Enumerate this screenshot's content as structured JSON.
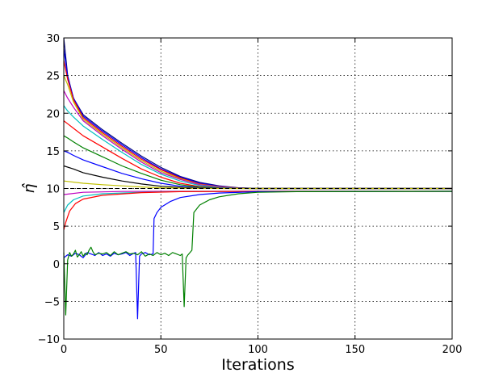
{
  "chart_data": {
    "type": "line",
    "title": "",
    "xlabel": "Iterations",
    "ylabel": "η̂",
    "xlim": [
      0,
      200
    ],
    "ylim": [
      -10,
      30
    ],
    "xticks": [
      0,
      50,
      100,
      150,
      200
    ],
    "yticks": [
      -10,
      -5,
      0,
      5,
      10,
      15,
      20,
      25,
      30
    ],
    "grid": true,
    "reference_line": {
      "y": 10,
      "style": "dashed",
      "color": "#000000"
    },
    "series": [
      {
        "color": "#000080",
        "points": [
          [
            0,
            30
          ],
          [
            2,
            25
          ],
          [
            5,
            22
          ],
          [
            10,
            19.8
          ],
          [
            20,
            17.8
          ],
          [
            30,
            16
          ],
          [
            40,
            14.3
          ],
          [
            50,
            12.8
          ],
          [
            60,
            11.6
          ],
          [
            70,
            10.8
          ],
          [
            80,
            10.35
          ],
          [
            90,
            10.1
          ],
          [
            100,
            10.02
          ],
          [
            200,
            10
          ]
        ]
      },
      {
        "color": "#0000ff",
        "points": [
          [
            0,
            28.5
          ],
          [
            2,
            24.8
          ],
          [
            5,
            22
          ],
          [
            10,
            19.6
          ],
          [
            20,
            17.6
          ],
          [
            30,
            15.8
          ],
          [
            40,
            14.1
          ],
          [
            50,
            12.6
          ],
          [
            60,
            11.5
          ],
          [
            70,
            10.7
          ],
          [
            80,
            10.3
          ],
          [
            90,
            10.08
          ],
          [
            100,
            10.02
          ],
          [
            200,
            10
          ]
        ]
      },
      {
        "color": "#ff0000",
        "points": [
          [
            0,
            27
          ],
          [
            2,
            24.5
          ],
          [
            5,
            21.8
          ],
          [
            10,
            19.4
          ],
          [
            20,
            17.4
          ],
          [
            30,
            15.6
          ],
          [
            40,
            13.9
          ],
          [
            50,
            12.5
          ],
          [
            60,
            11.4
          ],
          [
            70,
            10.6
          ],
          [
            80,
            10.25
          ],
          [
            90,
            10.07
          ],
          [
            100,
            10.01
          ],
          [
            200,
            10
          ]
        ]
      },
      {
        "color": "#bfbf00",
        "points": [
          [
            0,
            25
          ],
          [
            2,
            23.8
          ],
          [
            5,
            21.5
          ],
          [
            10,
            19.2
          ],
          [
            20,
            17.2
          ],
          [
            30,
            15.4
          ],
          [
            40,
            13.7
          ],
          [
            50,
            12.3
          ],
          [
            60,
            11.3
          ],
          [
            70,
            10.55
          ],
          [
            80,
            10.2
          ],
          [
            90,
            10.05
          ],
          [
            100,
            10.01
          ],
          [
            200,
            10
          ]
        ]
      },
      {
        "color": "#bf00bf",
        "points": [
          [
            0,
            23
          ],
          [
            2,
            22
          ],
          [
            5,
            20.8
          ],
          [
            10,
            19
          ],
          [
            20,
            17
          ],
          [
            30,
            15.2
          ],
          [
            40,
            13.5
          ],
          [
            50,
            12.1
          ],
          [
            60,
            11.2
          ],
          [
            70,
            10.5
          ],
          [
            80,
            10.18
          ],
          [
            90,
            10.04
          ],
          [
            100,
            10
          ],
          [
            200,
            10
          ]
        ]
      },
      {
        "color": "#00bfbf",
        "points": [
          [
            0,
            21
          ],
          [
            2,
            20.3
          ],
          [
            5,
            19.5
          ],
          [
            10,
            18.3
          ],
          [
            20,
            16.5
          ],
          [
            30,
            14.8
          ],
          [
            40,
            13.2
          ],
          [
            50,
            11.9
          ],
          [
            60,
            11
          ],
          [
            70,
            10.4
          ],
          [
            80,
            10.13
          ],
          [
            90,
            10.03
          ],
          [
            100,
            10
          ],
          [
            200,
            10
          ]
        ]
      },
      {
        "color": "#ff0000",
        "points": [
          [
            0,
            19
          ],
          [
            2,
            18.6
          ],
          [
            5,
            18
          ],
          [
            10,
            17
          ],
          [
            20,
            15.5
          ],
          [
            30,
            14
          ],
          [
            40,
            12.6
          ],
          [
            50,
            11.5
          ],
          [
            60,
            10.7
          ],
          [
            70,
            10.25
          ],
          [
            80,
            10.08
          ],
          [
            90,
            10.02
          ],
          [
            100,
            10
          ],
          [
            200,
            10
          ]
        ]
      },
      {
        "color": "#008000",
        "points": [
          [
            0,
            17
          ],
          [
            2,
            16.7
          ],
          [
            5,
            16.2
          ],
          [
            10,
            15.4
          ],
          [
            20,
            14.2
          ],
          [
            30,
            13
          ],
          [
            40,
            12
          ],
          [
            50,
            11.1
          ],
          [
            60,
            10.5
          ],
          [
            70,
            10.18
          ],
          [
            80,
            10.05
          ],
          [
            90,
            10.01
          ],
          [
            100,
            10
          ],
          [
            200,
            10
          ]
        ]
      },
      {
        "color": "#0000ff",
        "points": [
          [
            0,
            15
          ],
          [
            2,
            14.8
          ],
          [
            5,
            14.4
          ],
          [
            10,
            13.8
          ],
          [
            20,
            12.9
          ],
          [
            30,
            12
          ],
          [
            40,
            11.3
          ],
          [
            50,
            10.7
          ],
          [
            60,
            10.3
          ],
          [
            70,
            10.1
          ],
          [
            80,
            10.03
          ],
          [
            100,
            10
          ],
          [
            200,
            10
          ]
        ]
      },
      {
        "color": "#000000",
        "points": [
          [
            0,
            13
          ],
          [
            5,
            12.6
          ],
          [
            10,
            12.1
          ],
          [
            20,
            11.5
          ],
          [
            30,
            11
          ],
          [
            40,
            10.6
          ],
          [
            50,
            10.3
          ],
          [
            60,
            10.15
          ],
          [
            70,
            10.05
          ],
          [
            80,
            10.01
          ],
          [
            100,
            10
          ],
          [
            200,
            10
          ]
        ]
      },
      {
        "color": "#bfbf00",
        "points": [
          [
            0,
            11
          ],
          [
            10,
            10.7
          ],
          [
            20,
            10.5
          ],
          [
            30,
            10.35
          ],
          [
            40,
            10.2
          ],
          [
            50,
            10.1
          ],
          [
            60,
            10.05
          ],
          [
            80,
            10
          ],
          [
            200,
            10
          ]
        ]
      },
      {
        "color": "#bf00bf",
        "points": [
          [
            0,
            9.2
          ],
          [
            10,
            9.5
          ],
          [
            30,
            9.6
          ],
          [
            60,
            9.62
          ],
          [
            200,
            9.62
          ]
        ]
      },
      {
        "color": "#00bfbf",
        "points": [
          [
            0,
            6.8
          ],
          [
            2,
            7.8
          ],
          [
            5,
            8.5
          ],
          [
            10,
            9
          ],
          [
            20,
            9.3
          ],
          [
            40,
            9.5
          ],
          [
            60,
            9.6
          ],
          [
            100,
            9.62
          ],
          [
            200,
            9.62
          ]
        ]
      },
      {
        "color": "#ff0000",
        "points": [
          [
            0,
            4.5
          ],
          [
            1,
            5.5
          ],
          [
            3,
            7
          ],
          [
            6,
            8
          ],
          [
            10,
            8.6
          ],
          [
            20,
            9.1
          ],
          [
            40,
            9.45
          ],
          [
            60,
            9.58
          ],
          [
            100,
            9.62
          ],
          [
            200,
            9.62
          ]
        ]
      },
      {
        "color": "#0000ff",
        "points": [
          [
            0,
            0.8
          ],
          [
            2,
            1.2
          ],
          [
            4,
            1
          ],
          [
            6,
            1.4
          ],
          [
            8,
            1.2
          ],
          [
            10,
            0.8
          ],
          [
            12,
            1.5
          ],
          [
            14,
            1.3
          ],
          [
            16,
            1.1
          ],
          [
            18,
            1.5
          ],
          [
            20,
            1.1
          ],
          [
            22,
            1.3
          ],
          [
            24,
            1
          ],
          [
            26,
            1.4
          ],
          [
            28,
            1.2
          ],
          [
            30,
            1.3
          ],
          [
            32,
            1.5
          ],
          [
            34,
            1.1
          ],
          [
            36,
            1.4
          ],
          [
            37,
            1.5
          ],
          [
            38,
            -7.3
          ],
          [
            39,
            1
          ],
          [
            40,
            1.3
          ],
          [
            42,
            1.5
          ],
          [
            44,
            1.2
          ],
          [
            46,
            1.3
          ],
          [
            46.5,
            6
          ],
          [
            48,
            6.8
          ],
          [
            50,
            7.5
          ],
          [
            55,
            8.3
          ],
          [
            60,
            8.8
          ],
          [
            70,
            9.2
          ],
          [
            80,
            9.4
          ],
          [
            100,
            9.58
          ],
          [
            200,
            9.62
          ]
        ]
      },
      {
        "color": "#008000",
        "points": [
          [
            0,
            1.5
          ],
          [
            1,
            -6.8
          ],
          [
            2,
            0.5
          ],
          [
            3,
            1.5
          ],
          [
            4,
            1
          ],
          [
            5,
            1.3
          ],
          [
            6,
            1.8
          ],
          [
            7,
            0.9
          ],
          [
            8,
            1.2
          ],
          [
            9,
            1.6
          ],
          [
            10,
            1
          ],
          [
            11,
            1.4
          ],
          [
            12,
            1.2
          ],
          [
            13,
            1.8
          ],
          [
            14,
            2.2
          ],
          [
            15,
            1.6
          ],
          [
            16,
            1.2
          ],
          [
            18,
            1.4
          ],
          [
            20,
            1.3
          ],
          [
            22,
            1.5
          ],
          [
            24,
            1.1
          ],
          [
            26,
            1.6
          ],
          [
            28,
            1.2
          ],
          [
            30,
            1.4
          ],
          [
            32,
            1.6
          ],
          [
            34,
            1.3
          ],
          [
            36,
            1.4
          ],
          [
            38,
            1.2
          ],
          [
            40,
            1.6
          ],
          [
            42,
            1
          ],
          [
            44,
            1.3
          ],
          [
            46,
            1.1
          ],
          [
            48,
            1.5
          ],
          [
            50,
            1.2
          ],
          [
            52,
            1.4
          ],
          [
            54,
            1.1
          ],
          [
            56,
            1.5
          ],
          [
            58,
            1.3
          ],
          [
            60,
            1.1
          ],
          [
            61,
            1.3
          ],
          [
            62,
            -5.7
          ],
          [
            63,
            0.8
          ],
          [
            64,
            1.2
          ],
          [
            66,
            1.8
          ],
          [
            67,
            6.8
          ],
          [
            70,
            7.8
          ],
          [
            75,
            8.5
          ],
          [
            80,
            8.9
          ],
          [
            90,
            9.3
          ],
          [
            100,
            9.5
          ],
          [
            120,
            9.58
          ],
          [
            200,
            9.62
          ]
        ]
      }
    ]
  }
}
